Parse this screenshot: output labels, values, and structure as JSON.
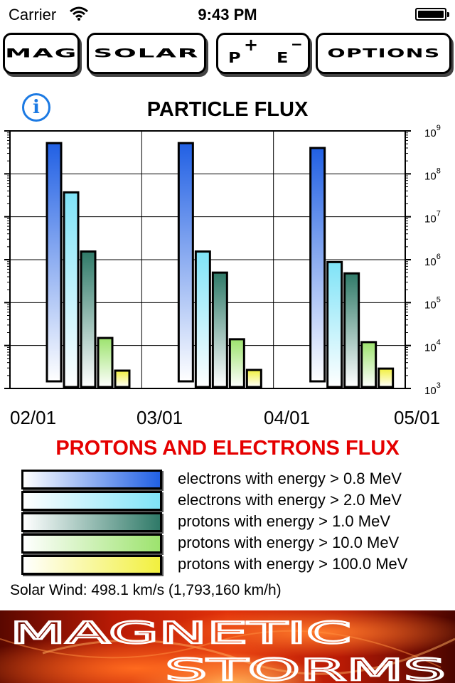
{
  "status_bar": {
    "carrier": "Carrier",
    "time": "9:43 PM"
  },
  "toolbar": {
    "mag_label": "MAG",
    "solar_label": "SOLAR",
    "proton_label": "P",
    "electron_label": "E",
    "plus_sign": "+",
    "minus_sign": "−",
    "options_label": "OPTIONS"
  },
  "info_button": {
    "glyph": "i"
  },
  "chart_title": "PARTICLE FLUX",
  "chart_data": {
    "type": "bar",
    "title": "PARTICLE FLUX",
    "y_scale": "log",
    "ylim": [
      1000,
      1000000000
    ],
    "y_ticks": [
      {
        "value": 1000,
        "base": "10",
        "exp": "3"
      },
      {
        "value": 10000,
        "base": "10",
        "exp": "4"
      },
      {
        "value": 100000,
        "base": "10",
        "exp": "5"
      },
      {
        "value": 1000000,
        "base": "10",
        "exp": "6"
      },
      {
        "value": 10000000,
        "base": "10",
        "exp": "7"
      },
      {
        "value": 100000000,
        "base": "10",
        "exp": "8"
      },
      {
        "value": 1000000000,
        "base": "10",
        "exp": "9"
      }
    ],
    "x_ticks": [
      "02/01",
      "03/01",
      "04/01",
      "05/01"
    ],
    "groups": [
      "02/01",
      "03/01",
      "04/01"
    ],
    "series": [
      {
        "name": "electrons with energy > 0.8 MeV",
        "color": "#2160e4",
        "values": [
          520000000,
          520000000,
          400000000
        ]
      },
      {
        "name": "electrons with energy > 2.0 MeV",
        "color": "#7fe3f7",
        "values": [
          37000000,
          1550000,
          880000
        ]
      },
      {
        "name": "protons with energy > 1.0 MeV",
        "color": "#2f7a68",
        "values": [
          1550000,
          500000,
          480000
        ]
      },
      {
        "name": "protons with energy > 10.0 MeV",
        "color": "#9de36e",
        "values": [
          15000,
          14000,
          12000
        ]
      },
      {
        "name": "protons with energy > 100.0 MeV",
        "color": "#f2f03e",
        "values": [
          2600,
          2700,
          2900
        ]
      }
    ]
  },
  "chart_subtitle": "PROTONS AND ELECTRONS FLUX",
  "legend": [
    {
      "label": "electrons with energy > 0.8 MeV",
      "color": "#2160e4"
    },
    {
      "label": "electrons with energy > 2.0 MeV",
      "color": "#7fe3f7"
    },
    {
      "label": "protons with energy > 1.0 MeV",
      "color": "#2f7a68"
    },
    {
      "label": "protons with energy > 10.0 MeV",
      "color": "#9de36e"
    },
    {
      "label": "protons with energy > 100.0 MeV",
      "color": "#f2f03e"
    }
  ],
  "solar_wind": "Solar Wind: 498.1 km/s (1,793,160 km/h)",
  "banner": {
    "line1": "MAGNETIC",
    "line2": "STORMS"
  }
}
